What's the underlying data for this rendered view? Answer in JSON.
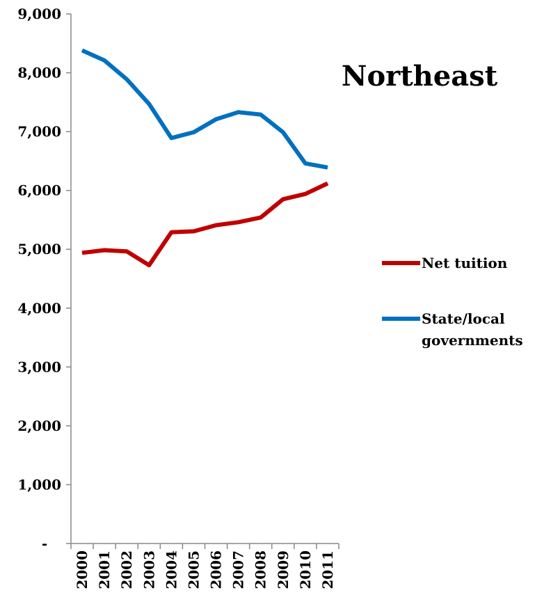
{
  "chart_data": {
    "type": "line",
    "title": "Northeast",
    "x": [
      "2000",
      "2001",
      "2002",
      "2003",
      "2004",
      "2005",
      "2006",
      "2007",
      "2008",
      "2009",
      "2010",
      "2011"
    ],
    "ylim": [
      0,
      9000
    ],
    "yticks": [
      {
        "value": 0,
        "label": "-"
      },
      {
        "value": 1000,
        "label": "1,000"
      },
      {
        "value": 2000,
        "label": "2,000"
      },
      {
        "value": 3000,
        "label": "3,000"
      },
      {
        "value": 4000,
        "label": "4,000"
      },
      {
        "value": 5000,
        "label": "5,000"
      },
      {
        "value": 6000,
        "label": "6,000"
      },
      {
        "value": 7000,
        "label": "7,000"
      },
      {
        "value": 8000,
        "label": "8,000"
      },
      {
        "value": 9000,
        "label": "9,000"
      }
    ],
    "grid": false,
    "legend_position": "right",
    "series": [
      {
        "name": "Net tuition",
        "color": "#c00000",
        "values": [
          4940,
          4985,
          4965,
          4730,
          5290,
          5305,
          5410,
          5460,
          5540,
          5850,
          5940,
          6120
        ]
      },
      {
        "name": "State/local governments",
        "legend_lines": [
          "State/local",
          "governments"
        ],
        "color": "#0070c0",
        "values": [
          8380,
          8210,
          7890,
          7470,
          6890,
          6990,
          7210,
          7330,
          7290,
          6990,
          6460,
          6390
        ]
      }
    ]
  }
}
